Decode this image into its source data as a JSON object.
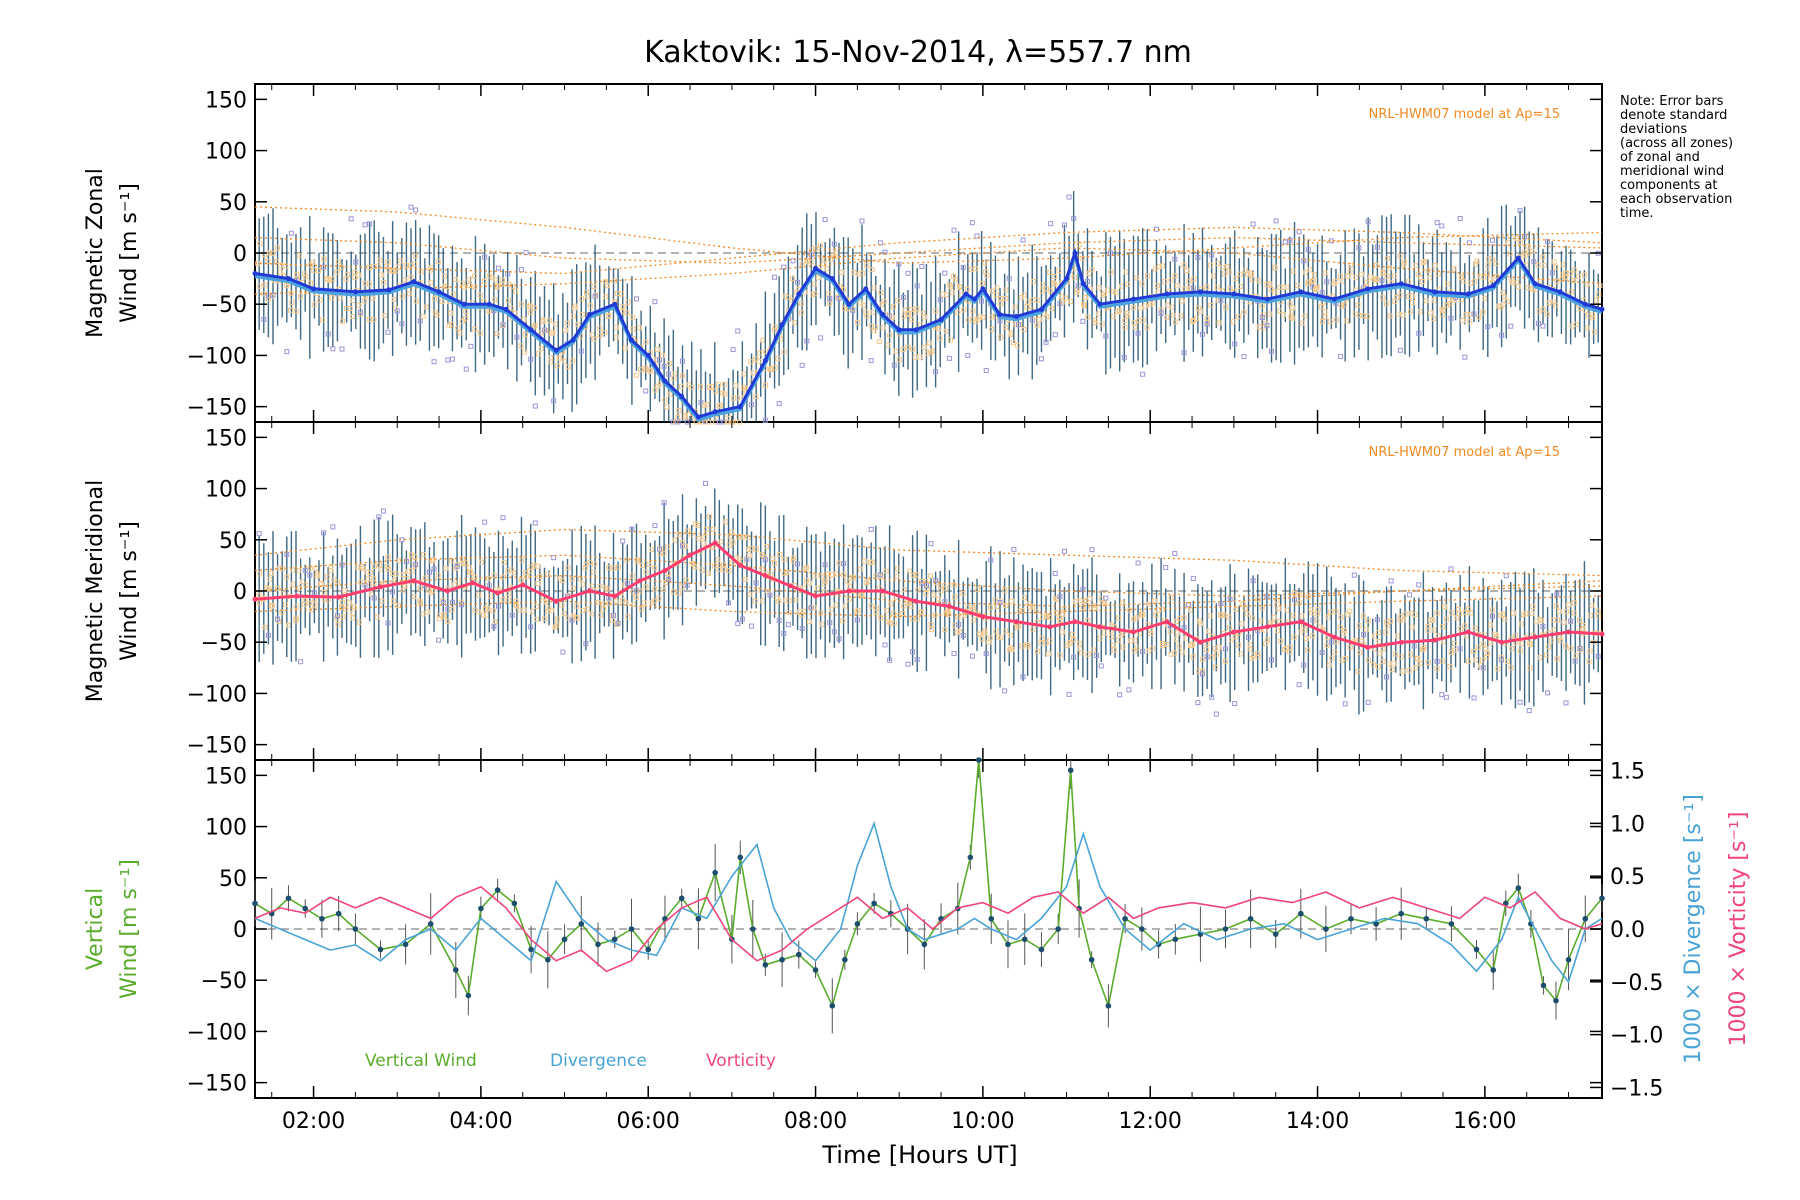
{
  "title": "Kaktovik: 15-Nov-2014, λ=557.7 nm",
  "note_lines": [
    "Note: Error bars",
    "denote standard",
    "deviations",
    "(across all zones)",
    "of zonal and",
    "meridional wind",
    "components at",
    "each observation",
    "time."
  ],
  "x_axis": {
    "label": "Time [Hours UT]",
    "ticks": [
      2,
      4,
      6,
      8,
      10,
      12,
      14,
      16
    ],
    "tick_labels": [
      "02:00",
      "04:00",
      "06:00",
      "08:00",
      "10:00",
      "12:00",
      "14:00",
      "16:00"
    ],
    "range_hours": [
      1.3,
      17.4
    ]
  },
  "colors": {
    "zonal_mean": "#1f3ad6",
    "zonal_zone": "#4aa3e0",
    "meridional_mean": "#ff3d6e",
    "errorbar": "#1d4e6e",
    "model": "#f08a24",
    "scatter_orange": "#f7c98b",
    "scatter_purple": "#9b96db",
    "vertical": "#5aac2d",
    "divergence": "#4aa3d6",
    "vorticity": "#f0457a",
    "zero_line": "#999999"
  },
  "chart_data": [
    {
      "type": "line",
      "panel": "zonal",
      "ylabel_line1": "Magnetic Zonal",
      "ylabel_line2": "Wind [m s⁻¹]",
      "ylim": [
        -165,
        165
      ],
      "yticks": [
        150,
        100,
        50,
        0,
        -50,
        -100,
        -150
      ],
      "ytick_labels": [
        "150",
        "100",
        "50",
        "0",
        "−50",
        "−100",
        "−150"
      ],
      "model_label": "NRL-HWM07 model at Ap=15",
      "series": [
        {
          "name": "Mean zonal wind",
          "x": [
            1.3,
            1.7,
            2.0,
            2.5,
            2.9,
            3.2,
            3.5,
            3.8,
            4.1,
            4.3,
            4.6,
            4.9,
            5.1,
            5.3,
            5.6,
            5.8,
            6.0,
            6.2,
            6.4,
            6.6,
            6.8,
            7.1,
            7.4,
            7.6,
            7.8,
            8.0,
            8.2,
            8.4,
            8.6,
            8.8,
            9.0,
            9.2,
            9.5,
            9.8,
            9.9,
            10.0,
            10.2,
            10.4,
            10.7,
            11.0,
            11.1,
            11.2,
            11.4,
            11.8,
            12.2,
            12.6,
            13.0,
            13.4,
            13.8,
            14.2,
            14.6,
            15.0,
            15.4,
            15.8,
            16.1,
            16.4,
            16.6,
            16.9,
            17.2,
            17.4
          ],
          "y": [
            -20,
            -25,
            -35,
            -38,
            -36,
            -28,
            -38,
            -50,
            -50,
            -55,
            -75,
            -95,
            -85,
            -60,
            -50,
            -85,
            -100,
            -125,
            -140,
            -160,
            -155,
            -150,
            -105,
            -70,
            -40,
            -15,
            -25,
            -50,
            -35,
            -60,
            -75,
            -75,
            -65,
            -40,
            -45,
            -35,
            -60,
            -62,
            -55,
            -25,
            0,
            -30,
            -50,
            -45,
            -40,
            -38,
            -40,
            -45,
            -38,
            -45,
            -35,
            -30,
            -38,
            -40,
            -32,
            -5,
            -30,
            -38,
            -50,
            -55
          ]
        }
      ],
      "model_curves": [
        {
          "name": "model 1",
          "x": [
            1.3,
            3,
            5,
            7,
            9,
            11,
            13,
            15,
            17.4
          ],
          "y": [
            45,
            40,
            25,
            5,
            -10,
            -5,
            5,
            15,
            20
          ]
        },
        {
          "name": "model 2",
          "x": [
            1.3,
            3,
            5,
            7,
            9,
            11,
            13,
            15,
            17.4
          ],
          "y": [
            15,
            10,
            -5,
            -10,
            0,
            10,
            15,
            10,
            5
          ]
        },
        {
          "name": "model 3",
          "x": [
            1.3,
            3,
            5,
            7,
            9,
            11,
            13,
            15,
            17.4
          ],
          "y": [
            -10,
            -15,
            -20,
            -5,
            10,
            20,
            25,
            20,
            10
          ]
        },
        {
          "name": "model 4",
          "x": [
            1.3,
            3,
            5,
            7,
            9,
            11,
            13,
            15,
            17.4
          ],
          "y": [
            -40,
            -35,
            -30,
            -20,
            -5,
            5,
            0,
            -15,
            -30
          ]
        }
      ]
    },
    {
      "type": "line",
      "panel": "meridional",
      "ylabel_line1": "Magnetic Meridional",
      "ylabel_line2": "Wind [m s⁻¹]",
      "ylim": [
        -165,
        165
      ],
      "yticks": [
        150,
        100,
        50,
        0,
        -50,
        -100,
        -150
      ],
      "ytick_labels": [
        "150",
        "100",
        "50",
        "0",
        "−50",
        "−100",
        "−150"
      ],
      "model_label": "NRL-HWM07 model at Ap=15",
      "series": [
        {
          "name": "Mean meridional wind",
          "x": [
            1.3,
            1.8,
            2.3,
            2.8,
            3.2,
            3.6,
            3.9,
            4.2,
            4.5,
            4.9,
            5.3,
            5.6,
            5.9,
            6.2,
            6.5,
            6.8,
            7.1,
            7.4,
            7.7,
            8.0,
            8.4,
            8.8,
            9.2,
            9.6,
            10.0,
            10.4,
            10.8,
            11.1,
            11.4,
            11.8,
            12.2,
            12.6,
            13.0,
            13.4,
            13.8,
            14.2,
            14.6,
            15.0,
            15.4,
            15.8,
            16.2,
            16.6,
            17.0,
            17.4
          ],
          "y": [
            -8,
            -5,
            -6,
            4,
            10,
            0,
            8,
            -2,
            6,
            -10,
            0,
            -5,
            10,
            20,
            35,
            47,
            25,
            15,
            5,
            -5,
            0,
            0,
            -10,
            -15,
            -25,
            -30,
            -35,
            -30,
            -35,
            -40,
            -30,
            -50,
            -40,
            -35,
            -30,
            -45,
            -55,
            -50,
            -48,
            -40,
            -50,
            -45,
            -40,
            -42
          ]
        }
      ],
      "model_curves": [
        {
          "name": "model 1",
          "x": [
            1.3,
            3,
            5,
            7,
            9,
            11,
            13,
            15,
            17.4
          ],
          "y": [
            35,
            50,
            60,
            55,
            40,
            35,
            30,
            20,
            15
          ]
        },
        {
          "name": "model 2",
          "x": [
            1.3,
            3,
            5,
            7,
            9,
            11,
            13,
            15,
            17.4
          ],
          "y": [
            20,
            30,
            35,
            25,
            10,
            0,
            -5,
            0,
            10
          ]
        },
        {
          "name": "model 3",
          "x": [
            1.3,
            3,
            5,
            7,
            9,
            11,
            13,
            15,
            17.4
          ],
          "y": [
            0,
            10,
            15,
            5,
            -10,
            -15,
            -10,
            0,
            5
          ]
        },
        {
          "name": "model 4",
          "x": [
            1.3,
            3,
            5,
            7,
            9,
            11,
            13,
            15,
            17.4
          ],
          "y": [
            -20,
            -15,
            -10,
            -20,
            -25,
            -20,
            -15,
            -10,
            -5
          ]
        }
      ]
    },
    {
      "type": "line",
      "panel": "vertical",
      "ylabel_line1": "Vertical",
      "ylabel_line2": "Wind [m s⁻¹]",
      "ylim": [
        -165,
        165
      ],
      "yticks": [
        150,
        100,
        50,
        0,
        -50,
        -100,
        -150
      ],
      "ytick_labels": [
        "150",
        "100",
        "50",
        "0",
        "−50",
        "−100",
        "−150"
      ],
      "right_axis": {
        "label_divergence": "1000 × Divergence [s⁻¹]",
        "label_vorticity": "1000 × Vorticity [s⁻¹]",
        "ylim": [
          -1.6,
          1.6
        ],
        "yticks": [
          1.5,
          1.0,
          0.5,
          0.0,
          -0.5,
          -1.0,
          -1.5
        ],
        "ytick_labels": [
          "1.5",
          "1.0",
          "0.5",
          "0.0",
          "−0.5",
          "−1.0",
          "−1.5"
        ]
      },
      "legend": [
        "Vertical Wind",
        "Divergence",
        "Vorticity"
      ],
      "series": [
        {
          "name": "Vertical Wind",
          "axis": "left",
          "x": [
            1.3,
            1.5,
            1.7,
            1.9,
            2.1,
            2.3,
            2.5,
            2.8,
            3.1,
            3.4,
            3.7,
            3.85,
            4.0,
            4.2,
            4.4,
            4.6,
            4.8,
            5.0,
            5.2,
            5.4,
            5.6,
            5.8,
            6.0,
            6.2,
            6.4,
            6.6,
            6.8,
            7.0,
            7.1,
            7.25,
            7.4,
            7.6,
            7.8,
            8.0,
            8.2,
            8.35,
            8.5,
            8.7,
            8.9,
            9.1,
            9.3,
            9.5,
            9.7,
            9.85,
            9.95,
            10.1,
            10.3,
            10.5,
            10.7,
            10.9,
            11.05,
            11.15,
            11.3,
            11.5,
            11.7,
            11.9,
            12.1,
            12.3,
            12.6,
            12.9,
            13.2,
            13.5,
            13.8,
            14.1,
            14.4,
            14.7,
            15.0,
            15.3,
            15.6,
            15.9,
            16.1,
            16.25,
            16.4,
            16.55,
            16.7,
            16.85,
            17.0,
            17.2,
            17.4
          ],
          "y": [
            25,
            15,
            30,
            20,
            10,
            15,
            0,
            -20,
            -15,
            5,
            -40,
            -65,
            20,
            38,
            25,
            -20,
            -30,
            -10,
            5,
            -15,
            -10,
            0,
            -20,
            10,
            30,
            10,
            55,
            -10,
            70,
            0,
            -35,
            -30,
            -25,
            -40,
            -75,
            -30,
            5,
            25,
            15,
            0,
            -15,
            10,
            20,
            70,
            165,
            10,
            -15,
            -10,
            -20,
            0,
            155,
            20,
            -30,
            -75,
            10,
            0,
            -15,
            -10,
            -5,
            0,
            10,
            -5,
            15,
            0,
            10,
            5,
            15,
            10,
            5,
            -20,
            -40,
            25,
            40,
            5,
            -55,
            -70,
            -30,
            10,
            30
          ]
        },
        {
          "name": "Divergence",
          "axis": "right",
          "x": [
            1.3,
            1.6,
            1.9,
            2.2,
            2.5,
            2.8,
            3.1,
            3.4,
            3.7,
            4.0,
            4.3,
            4.6,
            4.9,
            5.2,
            5.5,
            5.8,
            6.1,
            6.4,
            6.7,
            7.0,
            7.3,
            7.5,
            7.7,
            8.0,
            8.3,
            8.5,
            8.7,
            8.9,
            9.1,
            9.3,
            9.5,
            9.7,
            9.9,
            10.1,
            10.4,
            10.7,
            11.0,
            11.2,
            11.4,
            11.7,
            12.0,
            12.4,
            12.8,
            13.2,
            13.6,
            14.0,
            14.4,
            14.8,
            15.2,
            15.6,
            15.9,
            16.2,
            16.4,
            16.6,
            16.8,
            17.0,
            17.2,
            17.4
          ],
          "y": [
            0.1,
            0.0,
            -0.1,
            -0.2,
            -0.15,
            -0.3,
            -0.1,
            0.0,
            -0.2,
            0.1,
            -0.1,
            -0.3,
            0.45,
            0.1,
            -0.1,
            -0.2,
            -0.25,
            0.2,
            0.1,
            0.5,
            0.8,
            0.2,
            -0.1,
            -0.3,
            0.0,
            0.6,
            1.0,
            0.4,
            0.0,
            -0.1,
            -0.05,
            0.0,
            0.1,
            0.0,
            -0.1,
            0.1,
            0.4,
            0.9,
            0.4,
            0.0,
            -0.2,
            0.05,
            -0.1,
            0.0,
            0.05,
            -0.1,
            0.0,
            0.1,
            0.05,
            -0.15,
            -0.4,
            -0.1,
            0.3,
            0.0,
            -0.3,
            -0.5,
            0.0,
            0.1
          ]
        },
        {
          "name": "Vorticity",
          "axis": "right",
          "x": [
            1.3,
            1.6,
            1.9,
            2.2,
            2.5,
            2.8,
            3.1,
            3.4,
            3.7,
            4.0,
            4.3,
            4.6,
            4.9,
            5.2,
            5.5,
            5.8,
            6.1,
            6.4,
            6.7,
            7.0,
            7.3,
            7.6,
            7.9,
            8.2,
            8.5,
            8.8,
            9.1,
            9.4,
            9.7,
            10.0,
            10.3,
            10.6,
            10.9,
            11.2,
            11.5,
            11.8,
            12.1,
            12.5,
            12.9,
            13.3,
            13.7,
            14.1,
            14.5,
            14.9,
            15.3,
            15.7,
            16.0,
            16.3,
            16.6,
            16.9,
            17.2,
            17.4
          ],
          "y": [
            0.1,
            0.2,
            0.15,
            0.3,
            0.2,
            0.3,
            0.2,
            0.1,
            0.3,
            0.4,
            0.2,
            -0.1,
            -0.3,
            -0.2,
            -0.4,
            -0.3,
            0.0,
            0.2,
            0.3,
            -0.1,
            -0.3,
            -0.2,
            0.0,
            0.15,
            0.3,
            0.1,
            0.2,
            0.0,
            0.2,
            0.25,
            0.15,
            0.3,
            0.35,
            0.15,
            0.3,
            0.1,
            0.2,
            0.25,
            0.2,
            0.3,
            0.25,
            0.35,
            0.2,
            0.3,
            0.2,
            0.1,
            0.3,
            0.2,
            0.35,
            0.1,
            0.0,
            0.05
          ]
        }
      ]
    }
  ]
}
